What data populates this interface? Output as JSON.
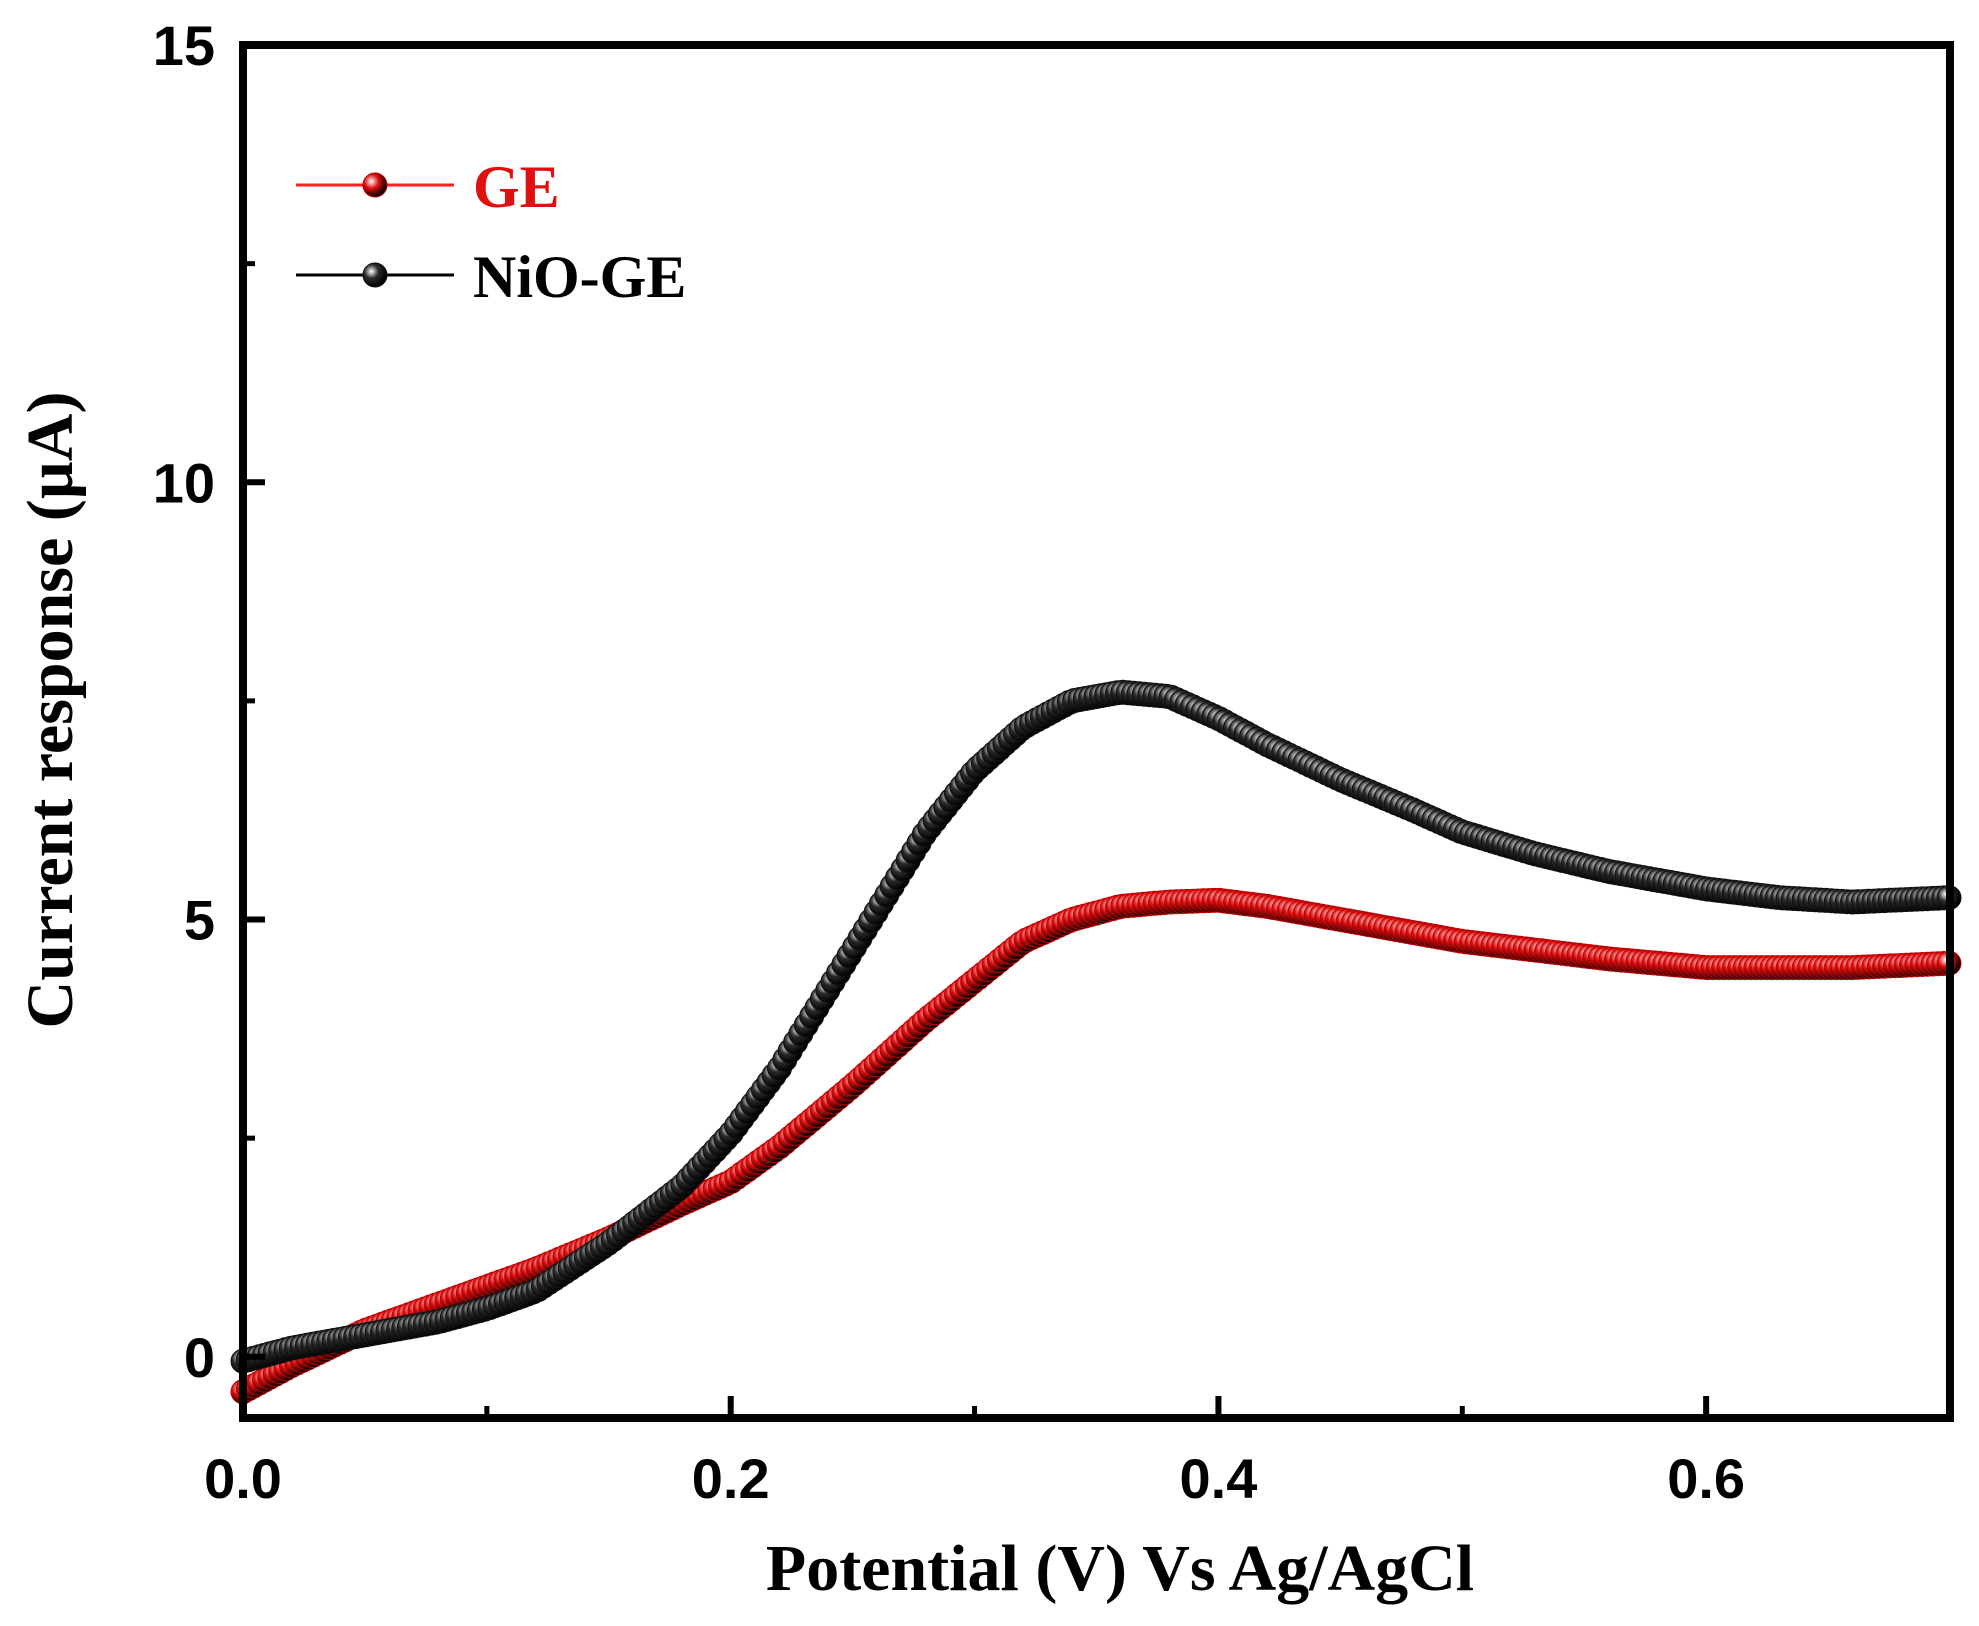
{
  "chart_data": {
    "type": "line",
    "title": "",
    "xlabel": "Potential (V) Vs Ag/AgCl",
    "ylabel": "Current response (µA)",
    "xlim": [
      0.0,
      0.7
    ],
    "ylim": [
      -0.7,
      15
    ],
    "xticks": [
      {
        "value": 0.0,
        "label": "0.0"
      },
      {
        "value": 0.2,
        "label": "0.2"
      },
      {
        "value": 0.4,
        "label": "0.4"
      },
      {
        "value": 0.6,
        "label": "0.6"
      }
    ],
    "yticks": [
      {
        "value": 0,
        "label": "0"
      },
      {
        "value": 5,
        "label": "5"
      },
      {
        "value": 10,
        "label": "10"
      },
      {
        "value": 15,
        "label": "15"
      }
    ],
    "grid": false,
    "legend_position": "top-left",
    "series": [
      {
        "name": "GE",
        "color": "#ff2020",
        "marker_color": "#e01010",
        "x": [
          0.0,
          0.02,
          0.05,
          0.08,
          0.1,
          0.12,
          0.15,
          0.18,
          0.2,
          0.22,
          0.25,
          0.28,
          0.3,
          0.32,
          0.34,
          0.36,
          0.38,
          0.4,
          0.42,
          0.45,
          0.48,
          0.5,
          0.53,
          0.56,
          0.6,
          0.63,
          0.66,
          0.7
        ],
        "y": [
          -0.4,
          -0.1,
          0.3,
          0.6,
          0.8,
          1.0,
          1.35,
          1.75,
          2.0,
          2.4,
          3.1,
          3.85,
          4.3,
          4.75,
          5.0,
          5.15,
          5.2,
          5.22,
          5.15,
          5.0,
          4.85,
          4.75,
          4.65,
          4.55,
          4.45,
          4.45,
          4.45,
          4.5
        ]
      },
      {
        "name": "NiO-GE",
        "color": "#000000",
        "marker_color": "#2a2a2a",
        "x": [
          0.0,
          0.02,
          0.05,
          0.08,
          0.1,
          0.12,
          0.15,
          0.18,
          0.2,
          0.22,
          0.24,
          0.26,
          0.28,
          0.3,
          0.32,
          0.34,
          0.36,
          0.38,
          0.4,
          0.42,
          0.45,
          0.48,
          0.5,
          0.53,
          0.56,
          0.6,
          0.63,
          0.66,
          0.7
        ],
        "y": [
          -0.05,
          0.1,
          0.25,
          0.4,
          0.55,
          0.75,
          1.3,
          1.95,
          2.55,
          3.3,
          4.2,
          5.1,
          6.0,
          6.7,
          7.2,
          7.5,
          7.6,
          7.55,
          7.3,
          7.0,
          6.6,
          6.25,
          6.0,
          5.75,
          5.55,
          5.35,
          5.25,
          5.2,
          5.25
        ]
      }
    ]
  }
}
